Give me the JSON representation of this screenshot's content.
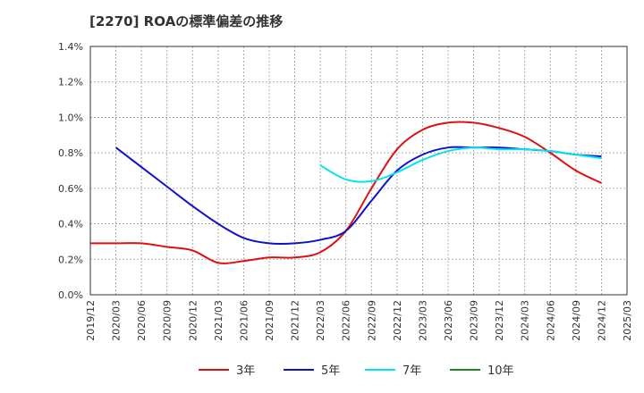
{
  "chart_data": {
    "type": "line",
    "title": "[2270]  ROAの標準偏差の推移",
    "xlabel": "",
    "ylabel": "",
    "ylim": [
      0,
      0.014
    ],
    "yticks": [
      {
        "value": 0.0,
        "label": "0.0%"
      },
      {
        "value": 0.002,
        "label": "0.2%"
      },
      {
        "value": 0.004,
        "label": "0.4%"
      },
      {
        "value": 0.006,
        "label": "0.6%"
      },
      {
        "value": 0.008,
        "label": "0.8%"
      },
      {
        "value": 0.01,
        "label": "1.0%"
      },
      {
        "value": 0.012,
        "label": "1.2%"
      },
      {
        "value": 0.014,
        "label": "1.4%"
      }
    ],
    "xticks": [
      "2019/12",
      "2020/03",
      "2020/06",
      "2020/09",
      "2020/12",
      "2021/03",
      "2021/06",
      "2021/09",
      "2021/12",
      "2022/03",
      "2022/06",
      "2022/09",
      "2022/12",
      "2023/03",
      "2023/06",
      "2023/09",
      "2023/12",
      "2024/03",
      "2024/06",
      "2024/09",
      "2024/12",
      "2025/03"
    ],
    "grid": true,
    "legend_position": "bottom",
    "series": [
      {
        "name": "3年",
        "color": "#dd1111",
        "x": [
          "2019/12",
          "2020/03",
          "2020/06",
          "2020/09",
          "2020/12",
          "2021/03",
          "2021/06",
          "2021/09",
          "2021/12",
          "2022/03",
          "2022/06",
          "2022/09",
          "2022/12",
          "2023/03",
          "2023/06",
          "2023/09",
          "2023/12",
          "2024/03",
          "2024/06",
          "2024/09",
          "2024/12"
        ],
        "values": [
          0.0029,
          0.0029,
          0.0029,
          0.0027,
          0.0025,
          0.0018,
          0.0019,
          0.0021,
          0.0021,
          0.0024,
          0.0036,
          0.006,
          0.0082,
          0.0093,
          0.0097,
          0.0097,
          0.0094,
          0.0089,
          0.008,
          0.007,
          0.0063
        ]
      },
      {
        "name": "5年",
        "color": "#1111cc",
        "x": [
          "2020/03",
          "2020/06",
          "2020/09",
          "2020/12",
          "2021/03",
          "2021/06",
          "2021/09",
          "2021/12",
          "2022/03",
          "2022/06",
          "2022/09",
          "2022/12",
          "2023/03",
          "2023/06",
          "2023/09",
          "2023/12",
          "2024/03",
          "2024/06",
          "2024/09",
          "2024/12"
        ],
        "values": [
          0.0083,
          0.0072,
          0.0061,
          0.005,
          0.004,
          0.0032,
          0.0029,
          0.0029,
          0.0031,
          0.0036,
          0.0053,
          0.007,
          0.0079,
          0.0083,
          0.0083,
          0.0083,
          0.0082,
          0.0081,
          0.0079,
          0.0078
        ]
      },
      {
        "name": "7年",
        "color": "#00e5ee",
        "x": [
          "2022/03",
          "2022/06",
          "2022/09",
          "2022/12",
          "2023/03",
          "2023/06",
          "2023/09",
          "2023/12",
          "2024/03",
          "2024/06",
          "2024/09",
          "2024/12"
        ],
        "values": [
          0.0073,
          0.0065,
          0.0064,
          0.0069,
          0.0076,
          0.0081,
          0.0083,
          0.0082,
          0.0082,
          0.0081,
          0.0079,
          0.0077
        ]
      },
      {
        "name": "10年",
        "color": "#228822",
        "x": [],
        "values": []
      }
    ]
  }
}
